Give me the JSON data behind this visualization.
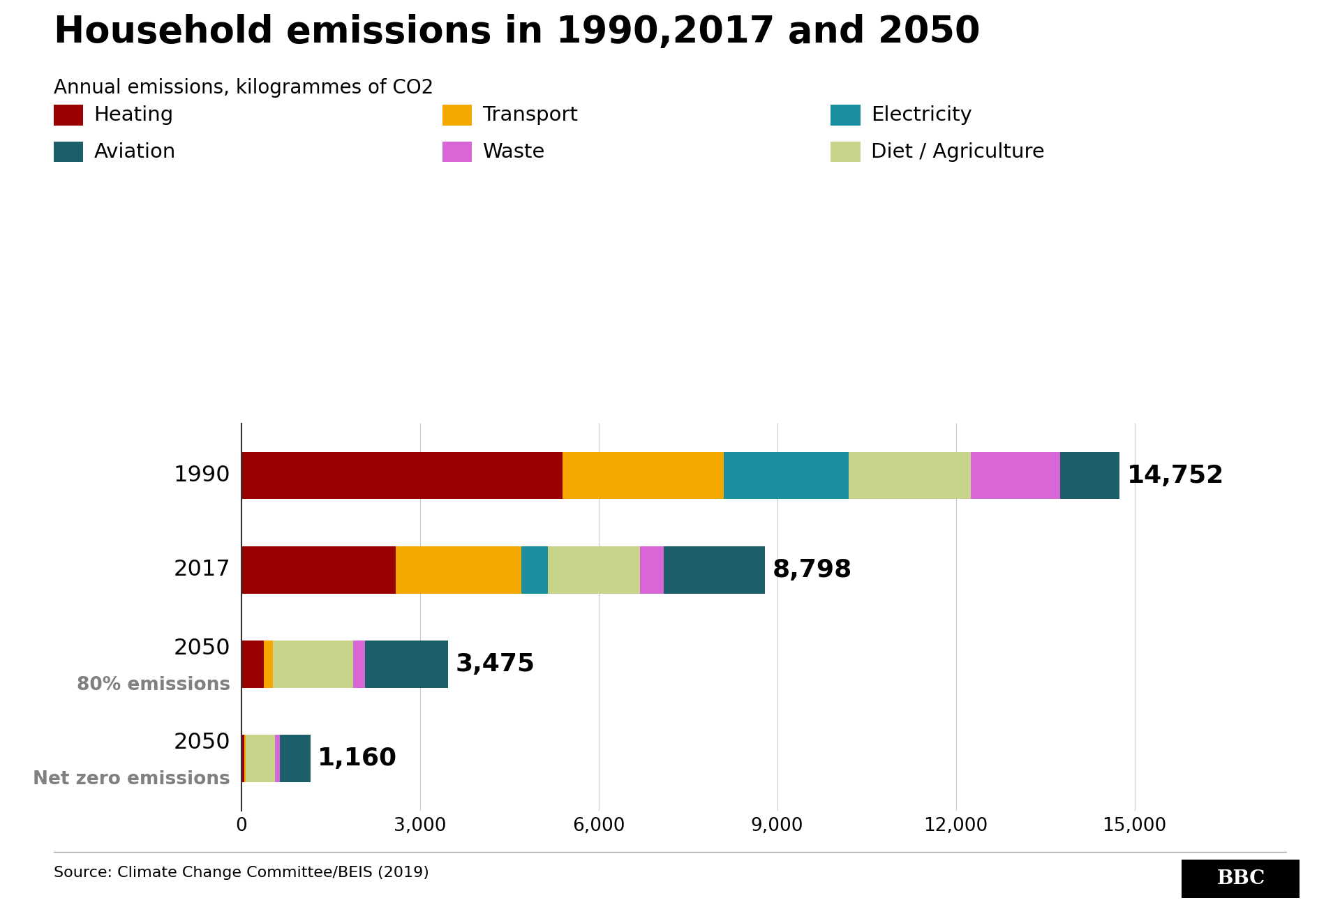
{
  "title": "Household emissions in 1990,2017 and 2050",
  "subtitle": "Annual emissions, kilogrammes of CO2",
  "source": "Source: Climate Change Committee/BEIS (2019)",
  "totals": [
    14752,
    8798,
    3475,
    1160
  ],
  "segment_order": [
    "Heating",
    "Transport",
    "Electricity",
    "Diet / Agriculture",
    "Waste",
    "Aviation"
  ],
  "segments": {
    "Heating": [
      5400,
      2600,
      380,
      50
    ],
    "Transport": [
      2700,
      2100,
      150,
      30
    ],
    "Electricity": [
      2100,
      450,
      0,
      0
    ],
    "Diet / Agriculture": [
      2052,
      1548,
      1350,
      490
    ],
    "Waste": [
      1500,
      400,
      200,
      80
    ],
    "Aviation": [
      1000,
      1700,
      1395,
      510
    ]
  },
  "colors": {
    "Heating": "#990000",
    "Transport": "#F5A800",
    "Electricity": "#1A8FA0",
    "Diet / Agriculture": "#C8D48A",
    "Waste": "#D966D6",
    "Aviation": "#1A5F6A"
  },
  "xticks": [
    0,
    3000,
    6000,
    9000,
    12000,
    15000
  ],
  "xticklabels": [
    "0",
    "3,000",
    "6,000",
    "9,000",
    "12,000",
    "15,000"
  ],
  "background_color": "#FFFFFF",
  "title_fontsize": 38,
  "subtitle_fontsize": 20,
  "legend_fontsize": 21,
  "tick_fontsize": 19,
  "total_label_fontsize": 26,
  "bar_label_fontsize": 22
}
